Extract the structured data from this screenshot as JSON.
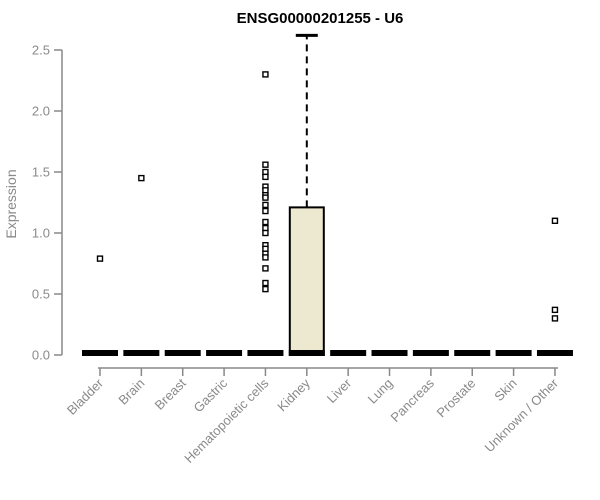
{
  "chart_data": {
    "type": "boxplot",
    "title": "ENSG00000201255 - U6",
    "ylabel": "Expression",
    "xlabel": "",
    "ylim": [
      0,
      2.65
    ],
    "grid": false,
    "legend": "none",
    "ytick_labels": [
      "0.0",
      "0.5",
      "1.0",
      "1.5",
      "2.0",
      "2.5"
    ],
    "ytick_values": [
      0,
      0.5,
      1.0,
      1.5,
      2.0,
      2.5
    ],
    "categories": [
      "Bladder",
      "Brain",
      "Breast",
      "Gastric",
      "Hematopoietic cells",
      "Kidney",
      "Liver",
      "Lung",
      "Pancreas",
      "Prostate",
      "Skin",
      "Unknown / Other"
    ],
    "boxes": [
      {
        "category": "Bladder",
        "median": 0,
        "q1": 0,
        "q3": 0,
        "whisker_low": 0,
        "whisker_high": 0,
        "outliers": [
          0.79
        ]
      },
      {
        "category": "Brain",
        "median": 0,
        "q1": 0,
        "q3": 0,
        "whisker_low": 0,
        "whisker_high": 0,
        "outliers": [
          1.45
        ]
      },
      {
        "category": "Breast",
        "median": 0,
        "q1": 0,
        "q3": 0,
        "whisker_low": 0,
        "whisker_high": 0,
        "outliers": []
      },
      {
        "category": "Gastric",
        "median": 0,
        "q1": 0,
        "q3": 0,
        "whisker_low": 0,
        "whisker_high": 0,
        "outliers": []
      },
      {
        "category": "Hematopoietic cells",
        "median": 0,
        "q1": 0,
        "q3": 0,
        "whisker_low": 0,
        "whisker_high": 0,
        "outliers": [
          2.3,
          1.56,
          1.5,
          1.46,
          1.38,
          1.35,
          1.31,
          1.29,
          1.23,
          1.18,
          1.09,
          1.04,
          1.0,
          0.9,
          0.87,
          0.83,
          0.8,
          0.71,
          0.59,
          0.54
        ]
      },
      {
        "category": "Kidney",
        "median": 0,
        "q1": 0,
        "q3": 1.21,
        "whisker_low": 0,
        "whisker_high": 2.62,
        "outliers": []
      },
      {
        "category": "Liver",
        "median": 0,
        "q1": 0,
        "q3": 0,
        "whisker_low": 0,
        "whisker_high": 0,
        "outliers": []
      },
      {
        "category": "Lung",
        "median": 0,
        "q1": 0,
        "q3": 0,
        "whisker_low": 0,
        "whisker_high": 0,
        "outliers": []
      },
      {
        "category": "Pancreas",
        "median": 0,
        "q1": 0,
        "q3": 0,
        "whisker_low": 0,
        "whisker_high": 0,
        "outliers": []
      },
      {
        "category": "Prostate",
        "median": 0,
        "q1": 0,
        "q3": 0,
        "whisker_low": 0,
        "whisker_high": 0,
        "outliers": []
      },
      {
        "category": "Skin",
        "median": 0,
        "q1": 0,
        "q3": 0,
        "whisker_low": 0,
        "whisker_high": 0,
        "outliers": []
      },
      {
        "category": "Unknown / Other",
        "median": 0,
        "q1": 0,
        "q3": 0,
        "whisker_low": 0,
        "whisker_high": 0,
        "outliers": [
          1.1,
          0.37,
          0.3
        ]
      }
    ],
    "colors": {
      "box_fill": "#ede8d0",
      "box_border": "#000000",
      "median": "#000000",
      "whisker": "#000000",
      "outlier_stroke": "#000000",
      "outlier_fill": "#ffffff",
      "axis": "#888888",
      "tick_text": "#8a8a8a",
      "title_text": "#000000"
    }
  }
}
